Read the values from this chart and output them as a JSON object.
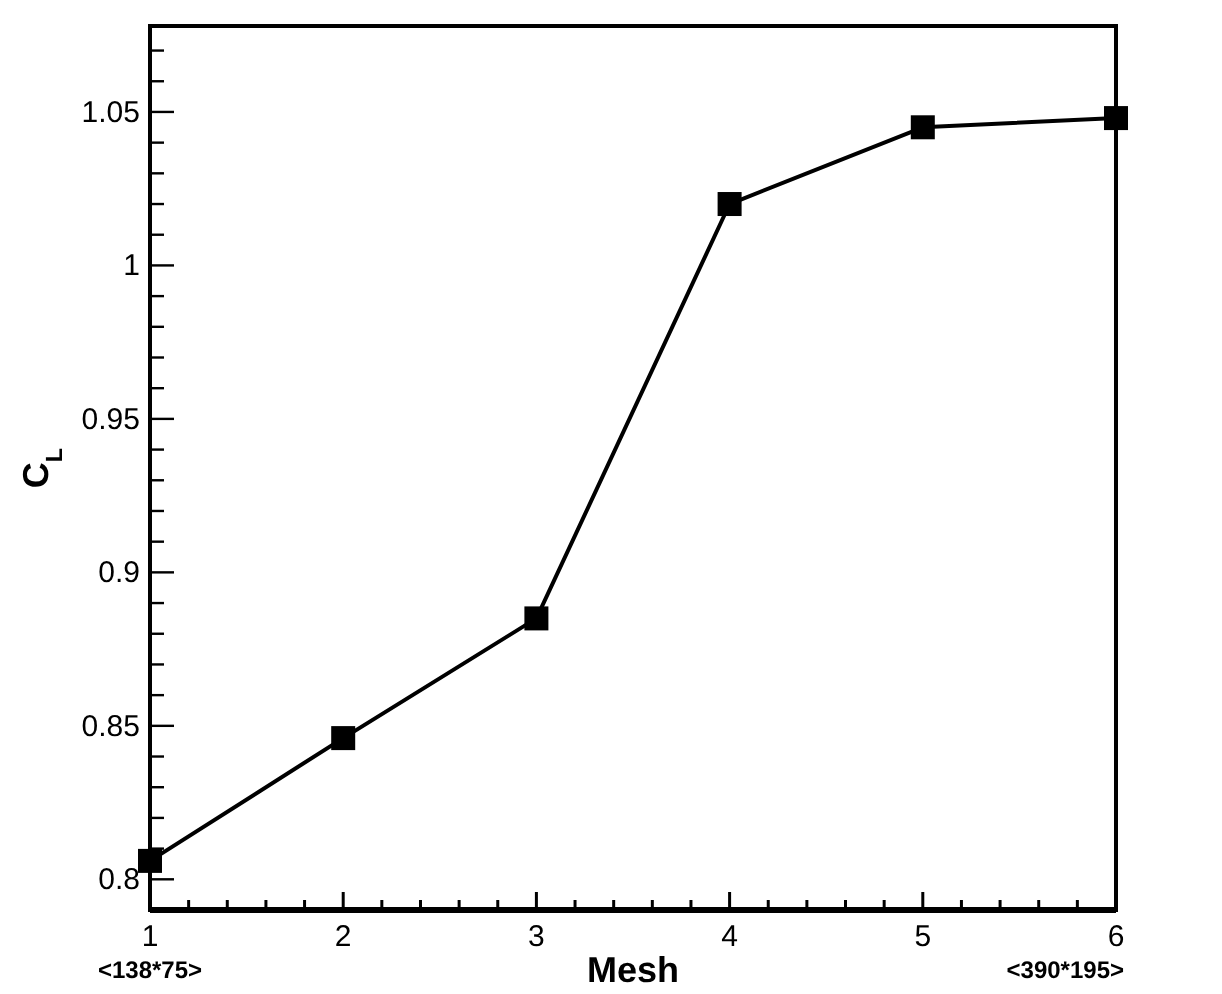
{
  "chart_data": {
    "type": "line",
    "xlabel": "Mesh",
    "ylabel": "C$_{L}$",
    "x": [
      1,
      2,
      3,
      4,
      5,
      6
    ],
    "series": [
      {
        "color": "#000000",
        "values": [
          0.806,
          0.846,
          0.885,
          1.02,
          1.045,
          1.048
        ]
      }
    ],
    "marker": "square",
    "line_style": "solid",
    "grid": false,
    "xlim": [
      1,
      6
    ],
    "ylim": [
      0.79,
      1.078
    ],
    "xticks": [
      1,
      {
        "value": 1.2,
        "label": null
      },
      {
        "value": 1.4,
        "label": null
      },
      {
        "value": 1.6,
        "label": null
      },
      {
        "value": 1.8,
        "label": null
      },
      2,
      {
        "value": 2.2,
        "label": null
      },
      {
        "value": 2.4,
        "label": null
      },
      {
        "value": 2.6,
        "label": null
      },
      {
        "value": 2.8,
        "label": null
      },
      3,
      {
        "value": 3.2,
        "label": null
      },
      {
        "value": 3.4,
        "label": null
      },
      {
        "value": 3.6,
        "label": null
      },
      {
        "value": 3.8,
        "label": null
      },
      4,
      {
        "value": 4.2,
        "label": null
      },
      {
        "value": 4.4,
        "label": null
      },
      {
        "value": 4.6,
        "label": null
      },
      {
        "value": 4.8,
        "label": null
      },
      5,
      {
        "value": 5.2,
        "label": null
      },
      {
        "value": 5.4,
        "label": null
      },
      {
        "value": 5.6,
        "label": null
      },
      {
        "value": 5.8,
        "label": null
      },
      6
    ],
    "yticks": [
      0.8,
      {
        "value": 0.81,
        "label": null
      },
      {
        "value": 0.82,
        "label": null
      },
      {
        "value": 0.83,
        "label": null
      },
      {
        "value": 0.84,
        "label": null
      },
      0.85,
      {
        "value": 0.86,
        "label": null
      },
      {
        "value": 0.87,
        "label": null
      },
      {
        "value": 0.88,
        "label": null
      },
      {
        "value": 0.89,
        "label": null
      },
      0.9,
      {
        "value": 0.91,
        "label": null
      },
      {
        "value": 0.92,
        "label": null
      },
      {
        "value": 0.93,
        "label": null
      },
      {
        "value": 0.94,
        "label": null
      },
      0.95,
      {
        "value": 0.96,
        "label": null
      },
      {
        "value": 0.97,
        "label": null
      },
      {
        "value": 0.98,
        "label": null
      },
      {
        "value": 0.99,
        "label": null
      },
      {
        "value": 1,
        "label": "1"
      },
      {
        "value": 1.01,
        "label": null
      },
      {
        "value": 1.02,
        "label": null
      },
      {
        "value": 1.03,
        "label": null
      },
      {
        "value": 1.04,
        "label": null
      },
      1.05,
      {
        "value": 1.06,
        "label": null
      },
      {
        "value": 1.07,
        "label": null
      }
    ],
    "annotations": [
      "<138*75>",
      "<390*195>"
    ]
  }
}
